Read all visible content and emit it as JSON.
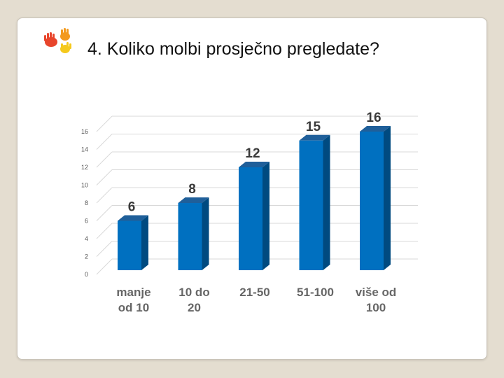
{
  "slide": {
    "title": "4. Koliko molbi prosječno pregledate?",
    "logo_icon": "colorful-hands-icon"
  },
  "chart_data": {
    "type": "bar",
    "title": "",
    "xlabel": "",
    "ylabel": "",
    "categories": [
      [
        "manje",
        "od 10"
      ],
      [
        "10 do",
        "20"
      ],
      [
        "21-50"
      ],
      [
        "51-100"
      ],
      [
        "više od",
        "100"
      ]
    ],
    "values": [
      6,
      8,
      12,
      15,
      16
    ],
    "ylim": [
      0,
      16
    ],
    "yticks": [
      0,
      2,
      4,
      6,
      8,
      10,
      12,
      14,
      16
    ],
    "grid": true,
    "style": "3d",
    "colors": {
      "front": "#0070c0",
      "side": "#004a80",
      "top": "#1f5f9a",
      "grid": "#d9d9d9"
    }
  }
}
